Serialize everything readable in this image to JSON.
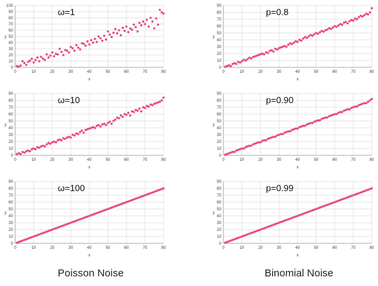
{
  "column_labels": {
    "left": "Poisson Noise",
    "right": "Binomial Noise"
  },
  "point_color": "#e8457a",
  "chart_data": [
    {
      "type": "scatter",
      "title": "ω=1",
      "xlabel": "x",
      "ylabel": "y",
      "xlim": [
        0,
        80
      ],
      "ylim": [
        0,
        100
      ],
      "xticks": [
        0,
        10,
        20,
        30,
        40,
        50,
        60,
        70,
        80
      ],
      "yticks": [
        0,
        10,
        20,
        30,
        40,
        50,
        60,
        70,
        80,
        90,
        100
      ],
      "grid": true,
      "x": [
        1,
        2,
        3,
        4,
        5,
        6,
        7,
        8,
        9,
        10,
        11,
        12,
        13,
        14,
        15,
        16,
        17,
        18,
        19,
        20,
        21,
        22,
        23,
        24,
        25,
        26,
        27,
        28,
        29,
        30,
        31,
        32,
        33,
        34,
        35,
        36,
        37,
        38,
        39,
        40,
        41,
        42,
        43,
        44,
        45,
        46,
        47,
        48,
        49,
        50,
        51,
        52,
        53,
        54,
        55,
        56,
        57,
        58,
        59,
        60,
        61,
        62,
        63,
        64,
        65,
        66,
        67,
        68,
        69,
        70,
        71,
        72,
        73,
        74,
        75,
        76,
        77,
        78,
        79,
        80
      ],
      "y": [
        2,
        1,
        3,
        10,
        7,
        4,
        9,
        11,
        14,
        8,
        12,
        16,
        10,
        17,
        14,
        12,
        21,
        16,
        19,
        24,
        18,
        22,
        21,
        30,
        25,
        20,
        28,
        27,
        24,
        33,
        31,
        27,
        36,
        32,
        29,
        39,
        38,
        35,
        42,
        37,
        44,
        40,
        46,
        41,
        50,
        47,
        43,
        51,
        45,
        58,
        53,
        49,
        56,
        62,
        55,
        60,
        52,
        64,
        59,
        66,
        57,
        63,
        61,
        69,
        65,
        58,
        72,
        68,
        74,
        70,
        77,
        66,
        80,
        74,
        63,
        79,
        69,
        93,
        89,
        87
      ]
    },
    {
      "type": "scatter",
      "title": "ω=10",
      "xlabel": "x",
      "ylabel": "y",
      "xlim": [
        0,
        80
      ],
      "ylim": [
        0,
        90
      ],
      "xticks": [
        0,
        10,
        20,
        30,
        40,
        50,
        60,
        70,
        80
      ],
      "yticks": [
        0,
        10,
        20,
        30,
        40,
        50,
        60,
        70,
        80,
        90
      ],
      "grid": true,
      "x": [
        1,
        2,
        3,
        4,
        5,
        6,
        7,
        8,
        9,
        10,
        11,
        12,
        13,
        14,
        15,
        16,
        17,
        18,
        19,
        20,
        21,
        22,
        23,
        24,
        25,
        26,
        27,
        28,
        29,
        30,
        31,
        32,
        33,
        34,
        35,
        36,
        37,
        38,
        39,
        40,
        41,
        42,
        43,
        44,
        45,
        46,
        47,
        48,
        49,
        50,
        51,
        52,
        53,
        54,
        55,
        56,
        57,
        58,
        59,
        60,
        61,
        62,
        63,
        64,
        65,
        66,
        67,
        68,
        69,
        70,
        71,
        72,
        73,
        74,
        75,
        76,
        77,
        78,
        79,
        80
      ],
      "y": [
        2,
        3,
        2,
        5,
        4,
        6,
        7,
        6,
        9,
        10,
        9,
        12,
        11,
        13,
        14,
        13,
        16,
        18,
        17,
        19,
        20,
        19,
        22,
        23,
        22,
        25,
        24,
        26,
        27,
        26,
        30,
        29,
        32,
        31,
        34,
        36,
        33,
        37,
        38,
        39,
        40,
        41,
        40,
        43,
        44,
        42,
        45,
        46,
        44,
        47,
        49,
        46,
        50,
        52,
        55,
        54,
        58,
        56,
        60,
        59,
        62,
        58,
        64,
        63,
        66,
        65,
        68,
        64,
        70,
        69,
        72,
        71,
        74,
        73,
        75,
        76,
        77,
        78,
        80,
        84
      ]
    },
    {
      "type": "scatter",
      "title": "ω=100",
      "xlabel": "x",
      "ylabel": "y",
      "xlim": [
        0,
        80
      ],
      "ylim": [
        0,
        90
      ],
      "xticks": [
        0,
        10,
        20,
        30,
        40,
        50,
        60,
        70,
        80
      ],
      "yticks": [
        0,
        10,
        20,
        30,
        40,
        50,
        60,
        70,
        80,
        90
      ],
      "grid": true,
      "x": [
        1,
        2,
        3,
        4,
        5,
        6,
        7,
        8,
        9,
        10,
        11,
        12,
        13,
        14,
        15,
        16,
        17,
        18,
        19,
        20,
        21,
        22,
        23,
        24,
        25,
        26,
        27,
        28,
        29,
        30,
        31,
        32,
        33,
        34,
        35,
        36,
        37,
        38,
        39,
        40,
        41,
        42,
        43,
        44,
        45,
        46,
        47,
        48,
        49,
        50,
        51,
        52,
        53,
        54,
        55,
        56,
        57,
        58,
        59,
        60,
        61,
        62,
        63,
        64,
        65,
        66,
        67,
        68,
        69,
        70,
        71,
        72,
        73,
        74,
        75,
        76,
        77,
        78,
        79,
        80
      ],
      "y": [
        1,
        2,
        3,
        4,
        5,
        6,
        7,
        8,
        9,
        10,
        11,
        12,
        13,
        14,
        15,
        16,
        17,
        18,
        19,
        20,
        21,
        22,
        23,
        24,
        25,
        26,
        27,
        28,
        29,
        30,
        31,
        32,
        33,
        34,
        35,
        36,
        37,
        38,
        39,
        40,
        41,
        42,
        43,
        44,
        45,
        46,
        47,
        48,
        49,
        50,
        51,
        52,
        53,
        54,
        55,
        56,
        57,
        58,
        59,
        60,
        61,
        62,
        63,
        64,
        65,
        66,
        67,
        68,
        69,
        70,
        71,
        72,
        73,
        74,
        75,
        76,
        77,
        78,
        79,
        80
      ]
    },
    {
      "type": "scatter",
      "title": "p=0.8",
      "xlabel": "x",
      "ylabel": "y",
      "xlim": [
        0,
        80
      ],
      "ylim": [
        0,
        90
      ],
      "xticks": [
        0,
        10,
        20,
        30,
        40,
        50,
        60,
        70,
        80
      ],
      "yticks": [
        0,
        10,
        20,
        30,
        40,
        50,
        60,
        70,
        80,
        90
      ],
      "grid": true,
      "x": [
        1,
        2,
        3,
        4,
        5,
        6,
        7,
        8,
        9,
        10,
        11,
        12,
        13,
        14,
        15,
        16,
        17,
        18,
        19,
        20,
        21,
        22,
        23,
        24,
        25,
        26,
        27,
        28,
        29,
        30,
        31,
        32,
        33,
        34,
        35,
        36,
        37,
        38,
        39,
        40,
        41,
        42,
        43,
        44,
        45,
        46,
        47,
        48,
        49,
        50,
        51,
        52,
        53,
        54,
        55,
        56,
        57,
        58,
        59,
        60,
        61,
        62,
        63,
        64,
        65,
        66,
        67,
        68,
        69,
        70,
        71,
        72,
        73,
        74,
        75,
        76,
        77,
        78,
        79,
        80
      ],
      "y": [
        1,
        2,
        3,
        2,
        5,
        6,
        5,
        8,
        7,
        9,
        11,
        10,
        12,
        14,
        13,
        15,
        16,
        17,
        18,
        19,
        20,
        19,
        22,
        21,
        24,
        25,
        23,
        27,
        26,
        28,
        29,
        30,
        31,
        30,
        33,
        35,
        34,
        36,
        38,
        37,
        40,
        39,
        42,
        44,
        43,
        45,
        47,
        46,
        48,
        50,
        49,
        51,
        53,
        52,
        54,
        55,
        57,
        56,
        58,
        60,
        59,
        61,
        63,
        62,
        65,
        66,
        64,
        67,
        69,
        68,
        71,
        70,
        73,
        75,
        74,
        76,
        78,
        77,
        80,
        86
      ]
    },
    {
      "type": "scatter",
      "title": "p=0.90",
      "xlabel": "x",
      "ylabel": "y",
      "xlim": [
        0,
        80
      ],
      "ylim": [
        0,
        90
      ],
      "xticks": [
        0,
        10,
        20,
        30,
        40,
        50,
        60,
        70,
        80
      ],
      "yticks": [
        0,
        10,
        20,
        30,
        40,
        50,
        60,
        70,
        80,
        90
      ],
      "grid": true,
      "x": [
        1,
        2,
        3,
        4,
        5,
        6,
        7,
        8,
        9,
        10,
        11,
        12,
        13,
        14,
        15,
        16,
        17,
        18,
        19,
        20,
        21,
        22,
        23,
        24,
        25,
        26,
        27,
        28,
        29,
        30,
        31,
        32,
        33,
        34,
        35,
        36,
        37,
        38,
        39,
        40,
        41,
        42,
        43,
        44,
        45,
        46,
        47,
        48,
        49,
        50,
        51,
        52,
        53,
        54,
        55,
        56,
        57,
        58,
        59,
        60,
        61,
        62,
        63,
        64,
        65,
        66,
        67,
        68,
        69,
        70,
        71,
        72,
        73,
        74,
        75,
        76,
        77,
        78,
        79,
        80
      ],
      "y": [
        1,
        2,
        3,
        4,
        5,
        5,
        7,
        8,
        9,
        10,
        10,
        12,
        13,
        14,
        14,
        16,
        17,
        18,
        19,
        19,
        21,
        22,
        22,
        24,
        25,
        26,
        27,
        27,
        29,
        30,
        31,
        31,
        33,
        34,
        35,
        35,
        37,
        38,
        39,
        39,
        41,
        42,
        43,
        43,
        45,
        46,
        47,
        47,
        49,
        50,
        51,
        51,
        53,
        54,
        55,
        55,
        57,
        58,
        59,
        60,
        60,
        62,
        63,
        63,
        65,
        66,
        67,
        67,
        69,
        70,
        71,
        71,
        73,
        74,
        75,
        76,
        76,
        78,
        80,
        82
      ]
    },
    {
      "type": "scatter",
      "title": "p=0.99",
      "xlabel": "x",
      "ylabel": "y",
      "xlim": [
        0,
        80
      ],
      "ylim": [
        0,
        90
      ],
      "xticks": [
        0,
        10,
        20,
        30,
        40,
        50,
        60,
        70,
        80
      ],
      "yticks": [
        0,
        10,
        20,
        30,
        40,
        50,
        60,
        70,
        80,
        90
      ],
      "grid": true,
      "x": [
        1,
        2,
        3,
        4,
        5,
        6,
        7,
        8,
        9,
        10,
        11,
        12,
        13,
        14,
        15,
        16,
        17,
        18,
        19,
        20,
        21,
        22,
        23,
        24,
        25,
        26,
        27,
        28,
        29,
        30,
        31,
        32,
        33,
        34,
        35,
        36,
        37,
        38,
        39,
        40,
        41,
        42,
        43,
        44,
        45,
        46,
        47,
        48,
        49,
        50,
        51,
        52,
        53,
        54,
        55,
        56,
        57,
        58,
        59,
        60,
        61,
        62,
        63,
        64,
        65,
        66,
        67,
        68,
        69,
        70,
        71,
        72,
        73,
        74,
        75,
        76,
        77,
        78,
        79,
        80
      ],
      "y": [
        1,
        2,
        3,
        4,
        5,
        6,
        7,
        8,
        9,
        10,
        11,
        12,
        13,
        14,
        15,
        16,
        17,
        18,
        19,
        20,
        21,
        22,
        23,
        24,
        25,
        26,
        27,
        28,
        29,
        30,
        31,
        32,
        33,
        34,
        35,
        36,
        37,
        38,
        39,
        40,
        41,
        42,
        43,
        44,
        45,
        46,
        47,
        48,
        49,
        50,
        51,
        52,
        53,
        54,
        55,
        56,
        57,
        58,
        59,
        60,
        61,
        62,
        63,
        64,
        65,
        66,
        67,
        68,
        69,
        70,
        71,
        72,
        73,
        74,
        75,
        76,
        77,
        78,
        79,
        80
      ]
    }
  ]
}
